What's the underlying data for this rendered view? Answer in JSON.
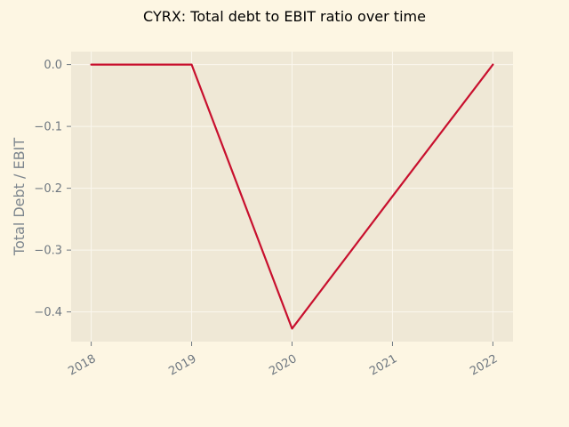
{
  "chart_data": {
    "type": "line",
    "title": "CYRX: Total debt to EBIT ratio over time",
    "xlabel": "",
    "ylabel": "Total Debt / EBIT",
    "x": [
      "2018",
      "2019",
      "2020",
      "2021",
      "2022"
    ],
    "x_numeric": [
      2018,
      2019,
      2020,
      2021,
      2022
    ],
    "series": [
      {
        "values": [
          0.0,
          0.0,
          -0.427,
          -0.213,
          0.0
        ],
        "color": "#c8102e"
      }
    ],
    "x_ticks": [
      "2018",
      "2019",
      "2020",
      "2021",
      "2022"
    ],
    "y_ticks": [
      0.0,
      -0.1,
      -0.2,
      -0.3,
      -0.4
    ],
    "y_tick_labels": [
      "0.0",
      "−0.1",
      "−0.2",
      "−0.3",
      "−0.4"
    ],
    "xlim": [
      2017.8,
      2022.2
    ],
    "ylim": [
      -0.448,
      0.021
    ],
    "grid": true,
    "legend": "none",
    "colors": {
      "figure_background": "#fdf6e3",
      "plot_background": "#efe8d6",
      "grid": "#fbf7ee",
      "line": "#c8102e"
    }
  }
}
